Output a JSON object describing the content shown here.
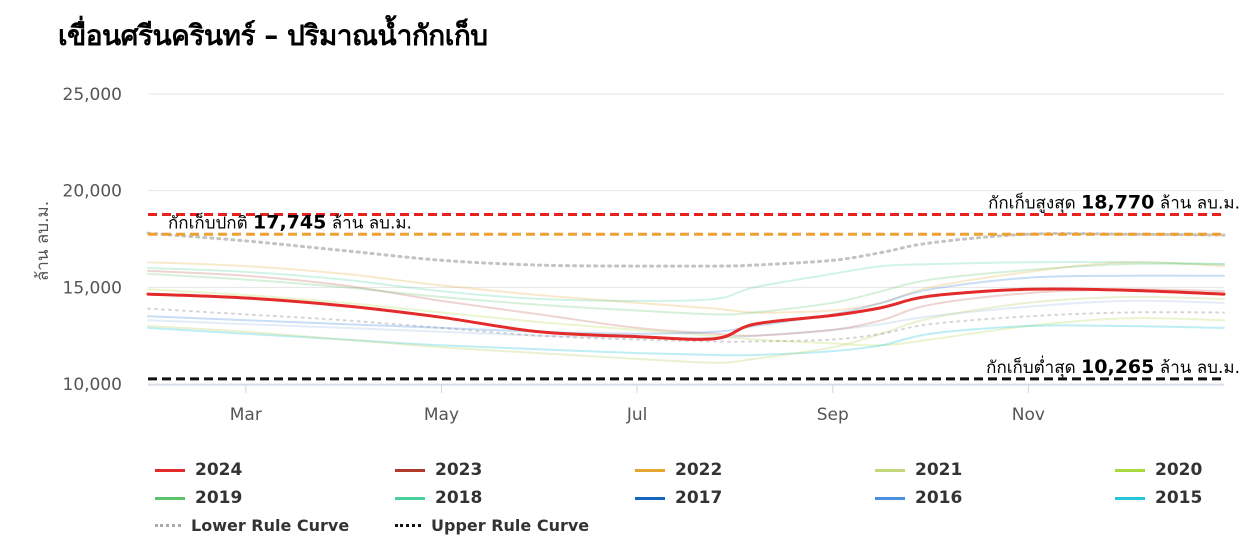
{
  "title": "เขื่อนศรีนครินทร์ – ปริมาณน้ำกักเก็บ",
  "chart_data": {
    "type": "line",
    "ylabel": "ล้าน ลบ.ม.",
    "ylim": [
      10000,
      25000
    ],
    "yticks": [
      "10,000",
      "15,000",
      "20,000",
      "25,000"
    ],
    "xticks": [
      {
        "label": "Mar",
        "month": 2.0
      },
      {
        "label": "May",
        "month": 4.0
      },
      {
        "label": "Jul",
        "month": 6.0
      },
      {
        "label": "Sep",
        "month": 8.0
      },
      {
        "label": "Nov",
        "month": 10.0
      }
    ],
    "xlim": [
      1.0,
      12.0
    ],
    "reference_lines": [
      {
        "label_prefix": "กักเก็บสูงสุด",
        "value_text": "18,770",
        "label_suffix": "ล้าน ลบ.ม.",
        "value": 18770,
        "color": "#e8201e",
        "align": "right"
      },
      {
        "label_prefix": "กักเก็บปกติ",
        "value_text": "17,745",
        "label_suffix": "ล้าน ลบ.ม.",
        "value": 17745,
        "color": "#f0a030",
        "align": "left"
      },
      {
        "label_prefix": "กักเก็บต่ำสุด",
        "value_text": "10,265",
        "label_suffix": "ล้าน ลบ.ม.",
        "value": 10265,
        "color": "#111111",
        "align": "right"
      }
    ],
    "x": [
      1.0,
      2.0,
      3.0,
      4.0,
      5.0,
      6.0,
      6.8,
      7.2,
      8.0,
      8.5,
      9.0,
      10.0,
      11.0,
      12.0
    ],
    "series": [
      {
        "name": "2024",
        "color": "#e32b2b",
        "width": 3,
        "opacity": 1.0,
        "dash": "",
        "values": [
          14650,
          14450,
          14050,
          13450,
          12700,
          12450,
          12350,
          13100,
          13550,
          13950,
          14550,
          14900,
          14850,
          14650
        ]
      },
      {
        "name": "2023",
        "color": "#b03a2e",
        "width": 2,
        "opacity": 0.22,
        "dash": "",
        "values": [
          15850,
          15600,
          15100,
          14300,
          13600,
          12900,
          12600,
          12500,
          12800,
          13300,
          14100,
          14700,
          14900,
          14800
        ]
      },
      {
        "name": "2022",
        "color": "#e5a630",
        "width": 2,
        "opacity": 0.25,
        "dash": "",
        "values": [
          16300,
          16100,
          15700,
          15100,
          14600,
          14200,
          13900,
          13700,
          13800,
          14200,
          15000,
          15800,
          16300,
          16100
        ]
      },
      {
        "name": "2021",
        "color": "#c4d67a",
        "width": 2,
        "opacity": 0.35,
        "dash": "",
        "values": [
          13000,
          12700,
          12300,
          11900,
          11600,
          11300,
          11100,
          11300,
          11900,
          12600,
          13400,
          14200,
          14500,
          14400
        ]
      },
      {
        "name": "2020",
        "color": "#a8d83c",
        "width": 2,
        "opacity": 0.25,
        "dash": "",
        "values": [
          14900,
          14600,
          14200,
          13700,
          13200,
          12800,
          12500,
          12300,
          12100,
          12000,
          12300,
          13000,
          13400,
          13300
        ]
      },
      {
        "name": "2019",
        "color": "#5cc46c",
        "width": 2,
        "opacity": 0.25,
        "dash": "",
        "values": [
          15700,
          15400,
          15000,
          14500,
          14100,
          13800,
          13600,
          13700,
          14200,
          14800,
          15400,
          15900,
          16200,
          16200
        ]
      },
      {
        "name": "2018",
        "color": "#48d19a",
        "width": 2,
        "opacity": 0.25,
        "dash": "",
        "values": [
          16000,
          15800,
          15400,
          14800,
          14400,
          14300,
          14400,
          15000,
          15700,
          16100,
          16200,
          16300,
          16300,
          16200
        ]
      },
      {
        "name": "2017",
        "color": "#1565c0",
        "width": 2,
        "opacity": 0.12,
        "dash": "",
        "values": [
          13300,
          13100,
          12900,
          12700,
          12500,
          12400,
          12400,
          12500,
          12800,
          13100,
          13500,
          14000,
          14300,
          14200
        ]
      },
      {
        "name": "2016",
        "color": "#4a90e2",
        "width": 2,
        "opacity": 0.3,
        "dash": "",
        "values": [
          13500,
          13300,
          13100,
          12900,
          12700,
          12600,
          12700,
          13000,
          13600,
          14200,
          14900,
          15500,
          15600,
          15600
        ]
      },
      {
        "name": "2015",
        "color": "#26c6da",
        "width": 2,
        "opacity": 0.3,
        "dash": "",
        "values": [
          12900,
          12600,
          12300,
          12000,
          11800,
          11600,
          11500,
          11500,
          11700,
          12000,
          12600,
          13000,
          13000,
          12900
        ]
      },
      {
        "name": "Lower Rule Curve",
        "color": "#aaaaaa",
        "width": 3,
        "opacity": 0.7,
        "dash": "2 5",
        "values": [
          17800,
          17400,
          16900,
          16400,
          16150,
          16100,
          16100,
          16150,
          16400,
          16800,
          17300,
          17750,
          17750,
          17700
        ]
      },
      {
        "name": "Upper Rule Curve",
        "color": "#888888",
        "width": 2,
        "opacity": 0.35,
        "dash": "2 5",
        "values": [
          13900,
          13600,
          13300,
          12900,
          12500,
          12300,
          12200,
          12200,
          12300,
          12600,
          13100,
          13500,
          13700,
          13700
        ]
      }
    ],
    "legend": {
      "position": "bottom",
      "items": [
        {
          "name": "2024",
          "color": "#e32b2b",
          "style": "solid"
        },
        {
          "name": "2023",
          "color": "#b03a2e",
          "style": "solid"
        },
        {
          "name": "2022",
          "color": "#e5a630",
          "style": "solid"
        },
        {
          "name": "2021",
          "color": "#c4d67a",
          "style": "solid"
        },
        {
          "name": "2020",
          "color": "#a8d83c",
          "style": "solid"
        },
        {
          "name": "2019",
          "color": "#5cc46c",
          "style": "solid"
        },
        {
          "name": "2018",
          "color": "#48d19a",
          "style": "solid"
        },
        {
          "name": "2017",
          "color": "#1565c0",
          "style": "solid"
        },
        {
          "name": "2016",
          "color": "#4a90e2",
          "style": "solid"
        },
        {
          "name": "2015",
          "color": "#26c6da",
          "style": "solid"
        },
        {
          "name": "Lower Rule Curve",
          "color": "#aaaaaa",
          "style": "dotted"
        },
        {
          "name": "Upper Rule Curve",
          "color": "#111111",
          "style": "dotted"
        }
      ]
    },
    "grid": "horizontal"
  }
}
